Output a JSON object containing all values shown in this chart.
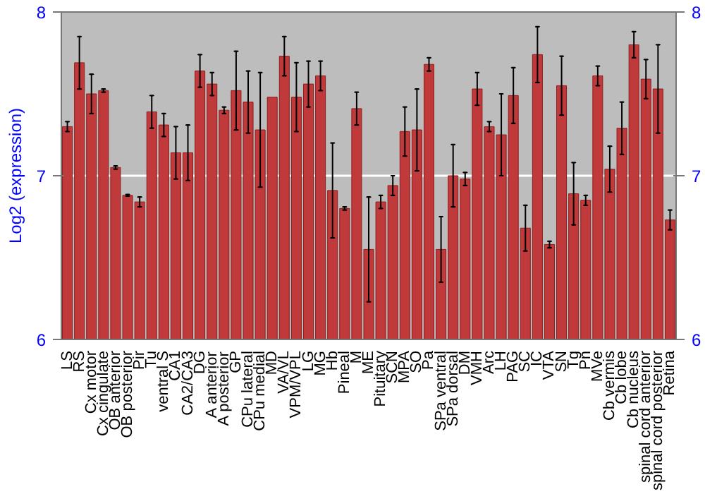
{
  "chart_data": {
    "type": "bar",
    "ylabel": "Log2 (expression)",
    "categories": [
      "LS",
      "RS",
      "Cx motor",
      "Cx cingulate",
      "OB anterior",
      "OB posterior",
      "Pir",
      "Tu",
      "ventral S",
      "CA1",
      "CA2/CA3",
      "DG",
      "A anterior",
      "A posterior",
      "GP",
      "CPu lateral",
      "CPu medial",
      "MD",
      "VA/VL",
      "VPM/VPL",
      "LG",
      "MG",
      "Hb",
      "Pineal",
      "M",
      "ME",
      "Pituitary",
      "SCN",
      "MPA",
      "SO",
      "Pa",
      "SPa ventral",
      "SPa dorsal",
      "DM",
      "VMH",
      "Arc",
      "LH",
      "PAG",
      "SC",
      "IC",
      "VTA",
      "SN",
      "Tg",
      "Pn",
      "MVe",
      "Cb vermis",
      "Cb lobe",
      "Cb nucleus",
      "spinal cord anterior",
      "spinal cord posterior",
      "Retina"
    ],
    "values": [
      7.3,
      7.69,
      7.5,
      7.52,
      7.05,
      6.88,
      6.84,
      7.39,
      7.31,
      7.14,
      7.14,
      7.64,
      7.56,
      7.4,
      7.52,
      7.45,
      7.28,
      7.48,
      7.73,
      7.48,
      7.56,
      7.61,
      6.91,
      6.8,
      7.41,
      6.55,
      6.84,
      6.94,
      7.27,
      7.28,
      7.68,
      6.55,
      7.0,
      6.98,
      7.53,
      7.3,
      7.25,
      7.49,
      6.68,
      7.74,
      6.58,
      7.55,
      6.89,
      6.85,
      7.61,
      7.04,
      7.29,
      7.8,
      7.59,
      7.53,
      6.73
    ],
    "errors": [
      0.03,
      0.16,
      0.12,
      0.01,
      0.01,
      0.005,
      0.03,
      0.1,
      0.07,
      0.16,
      0.17,
      0.1,
      0.07,
      0.02,
      0.24,
      0.19,
      0.35,
      null,
      0.12,
      0.21,
      0.14,
      0.09,
      0.29,
      0.01,
      0.1,
      0.32,
      0.04,
      0.06,
      0.15,
      0.25,
      0.04,
      0.2,
      0.19,
      0.04,
      0.1,
      0.03,
      0.25,
      0.17,
      0.14,
      0.17,
      0.02,
      0.18,
      0.19,
      0.03,
      0.06,
      0.14,
      0.16,
      0.08,
      0.12,
      0.27,
      0.06
    ],
    "color": "#c0393b",
    "ylim": [
      6,
      8
    ],
    "yticks": [
      6,
      7,
      8
    ],
    "y2lim": [
      6,
      8
    ],
    "y2ticks": [
      6,
      7,
      8
    ],
    "grid": "y"
  }
}
